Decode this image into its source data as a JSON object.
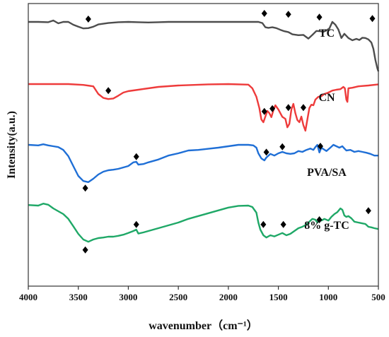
{
  "chart_data": {
    "type": "line",
    "xlabel": "wavenumber（cm⁻¹）",
    "ylabel": "Intensity(a.u.)",
    "xlim": [
      4000,
      500
    ],
    "x_ticks": [
      "4000",
      "3500",
      "3000",
      "2500",
      "2000",
      "1500",
      "1000",
      "500"
    ],
    "y_ticks": "none",
    "grid": false,
    "legend": "none",
    "marker": "diamond",
    "series": [
      {
        "name": "TC",
        "color": "#4d4d4d",
        "baseline": 0.935,
        "points": [
          [
            4000,
            0.935
          ],
          [
            3900,
            0.935
          ],
          [
            3800,
            0.934
          ],
          [
            3750,
            0.94
          ],
          [
            3700,
            0.93
          ],
          [
            3650,
            0.935
          ],
          [
            3600,
            0.935
          ],
          [
            3550,
            0.925
          ],
          [
            3500,
            0.918
          ],
          [
            3450,
            0.912
          ],
          [
            3400,
            0.913
          ],
          [
            3350,
            0.918
          ],
          [
            3300,
            0.926
          ],
          [
            3200,
            0.931
          ],
          [
            3100,
            0.934
          ],
          [
            3000,
            0.935
          ],
          [
            2900,
            0.934
          ],
          [
            2800,
            0.933
          ],
          [
            2700,
            0.934
          ],
          [
            2600,
            0.935
          ],
          [
            2400,
            0.935
          ],
          [
            2200,
            0.935
          ],
          [
            2000,
            0.935
          ],
          [
            1800,
            0.935
          ],
          [
            1700,
            0.935
          ],
          [
            1660,
            0.931
          ],
          [
            1630,
            0.916
          ],
          [
            1600,
            0.914
          ],
          [
            1560,
            0.916
          ],
          [
            1520,
            0.913
          ],
          [
            1480,
            0.907
          ],
          [
            1440,
            0.902
          ],
          [
            1400,
            0.899
          ],
          [
            1360,
            0.891
          ],
          [
            1300,
            0.888
          ],
          [
            1250,
            0.889
          ],
          [
            1200,
            0.876
          ],
          [
            1160,
            0.889
          ],
          [
            1120,
            0.903
          ],
          [
            1080,
            0.902
          ],
          [
            1050,
            0.9
          ],
          [
            1020,
            0.905
          ],
          [
            990,
            0.912
          ],
          [
            960,
            0.935
          ],
          [
            930,
            0.925
          ],
          [
            900,
            0.908
          ],
          [
            870,
            0.878
          ],
          [
            840,
            0.893
          ],
          [
            800,
            0.878
          ],
          [
            760,
            0.87
          ],
          [
            720,
            0.875
          ],
          [
            690,
            0.871
          ],
          [
            660,
            0.879
          ],
          [
            630,
            0.878
          ],
          [
            600,
            0.873
          ],
          [
            570,
            0.862
          ],
          [
            550,
            0.84
          ],
          [
            530,
            0.8
          ],
          [
            510,
            0.77
          ],
          [
            500,
            0.76
          ]
        ],
        "markers": [
          [
            3400,
            0.945
          ],
          [
            1640,
            0.965
          ],
          [
            1400,
            0.962
          ],
          [
            1090,
            0.952
          ],
          [
            560,
            0.947
          ]
        ]
      },
      {
        "name": "CN",
        "color": "#ee3b3b",
        "baseline": 0.715,
        "points": [
          [
            4000,
            0.715
          ],
          [
            3600,
            0.715
          ],
          [
            3450,
            0.712
          ],
          [
            3350,
            0.707
          ],
          [
            3300,
            0.68
          ],
          [
            3250,
            0.666
          ],
          [
            3200,
            0.662
          ],
          [
            3150,
            0.664
          ],
          [
            3100,
            0.674
          ],
          [
            3050,
            0.685
          ],
          [
            3000,
            0.69
          ],
          [
            2900,
            0.695
          ],
          [
            2700,
            0.705
          ],
          [
            2500,
            0.71
          ],
          [
            2200,
            0.714
          ],
          [
            2000,
            0.715
          ],
          [
            1800,
            0.713
          ],
          [
            1760,
            0.7
          ],
          [
            1720,
            0.67
          ],
          [
            1690,
            0.63
          ],
          [
            1670,
            0.59
          ],
          [
            1650,
            0.58
          ],
          [
            1630,
            0.6
          ],
          [
            1610,
            0.62
          ],
          [
            1590,
            0.612
          ],
          [
            1570,
            0.598
          ],
          [
            1550,
            0.622
          ],
          [
            1530,
            0.64
          ],
          [
            1500,
            0.625
          ],
          [
            1460,
            0.599
          ],
          [
            1430,
            0.592
          ],
          [
            1410,
            0.562
          ],
          [
            1390,
            0.574
          ],
          [
            1370,
            0.625
          ],
          [
            1350,
            0.645
          ],
          [
            1330,
            0.612
          ],
          [
            1310,
            0.588
          ],
          [
            1290,
            0.58
          ],
          [
            1270,
            0.6
          ],
          [
            1250,
            0.57
          ],
          [
            1230,
            0.55
          ],
          [
            1210,
            0.59
          ],
          [
            1190,
            0.63
          ],
          [
            1170,
            0.642
          ],
          [
            1150,
            0.64
          ],
          [
            1130,
            0.66
          ],
          [
            1100,
            0.67
          ],
          [
            1070,
            0.672
          ],
          [
            1040,
            0.68
          ],
          [
            1000,
            0.685
          ],
          [
            960,
            0.692
          ],
          [
            920,
            0.695
          ],
          [
            880,
            0.697
          ],
          [
            850,
            0.705
          ],
          [
            835,
            0.7
          ],
          [
            820,
            0.66
          ],
          [
            810,
            0.652
          ],
          [
            800,
            0.7
          ],
          [
            760,
            0.702
          ],
          [
            700,
            0.707
          ],
          [
            600,
            0.71
          ],
          [
            500,
            0.714
          ]
        ],
        "markers": [
          [
            3200,
            0.692
          ],
          [
            1640,
            0.618
          ],
          [
            1560,
            0.628
          ],
          [
            1400,
            0.632
          ],
          [
            1250,
            0.632
          ]
        ]
      },
      {
        "name": "PVA/SA",
        "color": "#1f6fd6",
        "baseline": 0.5,
        "points": [
          [
            4000,
            0.5
          ],
          [
            3900,
            0.498
          ],
          [
            3850,
            0.502
          ],
          [
            3800,
            0.498
          ],
          [
            3750,
            0.495
          ],
          [
            3700,
            0.492
          ],
          [
            3650,
            0.482
          ],
          [
            3600,
            0.46
          ],
          [
            3550,
            0.425
          ],
          [
            3500,
            0.39
          ],
          [
            3450,
            0.372
          ],
          [
            3400,
            0.368
          ],
          [
            3350,
            0.38
          ],
          [
            3300,
            0.395
          ],
          [
            3250,
            0.405
          ],
          [
            3200,
            0.41
          ],
          [
            3150,
            0.412
          ],
          [
            3100,
            0.415
          ],
          [
            3050,
            0.42
          ],
          [
            3000,
            0.425
          ],
          [
            2950,
            0.438
          ],
          [
            2920,
            0.44
          ],
          [
            2900,
            0.43
          ],
          [
            2850,
            0.432
          ],
          [
            2800,
            0.438
          ],
          [
            2700,
            0.448
          ],
          [
            2600,
            0.462
          ],
          [
            2500,
            0.47
          ],
          [
            2400,
            0.48
          ],
          [
            2300,
            0.482
          ],
          [
            2200,
            0.486
          ],
          [
            2100,
            0.49
          ],
          [
            2000,
            0.495
          ],
          [
            1900,
            0.5
          ],
          [
            1800,
            0.5
          ],
          [
            1750,
            0.498
          ],
          [
            1720,
            0.49
          ],
          [
            1700,
            0.47
          ],
          [
            1670,
            0.452
          ],
          [
            1640,
            0.445
          ],
          [
            1620,
            0.455
          ],
          [
            1580,
            0.468
          ],
          [
            1540,
            0.462
          ],
          [
            1500,
            0.47
          ],
          [
            1460,
            0.475
          ],
          [
            1420,
            0.47
          ],
          [
            1380,
            0.468
          ],
          [
            1340,
            0.47
          ],
          [
            1300,
            0.478
          ],
          [
            1260,
            0.475
          ],
          [
            1220,
            0.482
          ],
          [
            1180,
            0.487
          ],
          [
            1150,
            0.482
          ],
          [
            1130,
            0.492
          ],
          [
            1110,
            0.5
          ],
          [
            1090,
            0.473
          ],
          [
            1070,
            0.49
          ],
          [
            1050,
            0.485
          ],
          [
            1020,
            0.478
          ],
          [
            980,
            0.49
          ],
          [
            950,
            0.5
          ],
          [
            920,
            0.495
          ],
          [
            890,
            0.49
          ],
          [
            860,
            0.495
          ],
          [
            840,
            0.487
          ],
          [
            820,
            0.48
          ],
          [
            780,
            0.482
          ],
          [
            740,
            0.475
          ],
          [
            700,
            0.478
          ],
          [
            660,
            0.475
          ],
          [
            620,
            0.472
          ],
          [
            580,
            0.468
          ],
          [
            540,
            0.462
          ],
          [
            500,
            0.462
          ]
        ],
        "markers": [
          [
            3430,
            0.347
          ],
          [
            2920,
            0.458
          ],
          [
            1620,
            0.474
          ],
          [
            1460,
            0.493
          ],
          [
            1080,
            0.495
          ]
        ]
      },
      {
        "name": "8% g-TC",
        "color": "#1fa867",
        "baseline": 0.287,
        "points": [
          [
            4000,
            0.287
          ],
          [
            3900,
            0.285
          ],
          [
            3850,
            0.292
          ],
          [
            3800,
            0.288
          ],
          [
            3750,
            0.275
          ],
          [
            3700,
            0.265
          ],
          [
            3650,
            0.255
          ],
          [
            3600,
            0.238
          ],
          [
            3550,
            0.212
          ],
          [
            3500,
            0.185
          ],
          [
            3450,
            0.165
          ],
          [
            3400,
            0.157
          ],
          [
            3350,
            0.165
          ],
          [
            3300,
            0.17
          ],
          [
            3250,
            0.172
          ],
          [
            3200,
            0.175
          ],
          [
            3150,
            0.175
          ],
          [
            3100,
            0.178
          ],
          [
            3050,
            0.182
          ],
          [
            3000,
            0.188
          ],
          [
            2950,
            0.195
          ],
          [
            2920,
            0.2
          ],
          [
            2900,
            0.186
          ],
          [
            2850,
            0.19
          ],
          [
            2800,
            0.195
          ],
          [
            2700,
            0.205
          ],
          [
            2600,
            0.215
          ],
          [
            2500,
            0.225
          ],
          [
            2400,
            0.238
          ],
          [
            2300,
            0.248
          ],
          [
            2200,
            0.258
          ],
          [
            2100,
            0.268
          ],
          [
            2000,
            0.278
          ],
          [
            1900,
            0.284
          ],
          [
            1800,
            0.285
          ],
          [
            1760,
            0.28
          ],
          [
            1720,
            0.26
          ],
          [
            1700,
            0.225
          ],
          [
            1680,
            0.2
          ],
          [
            1650,
            0.18
          ],
          [
            1620,
            0.172
          ],
          [
            1580,
            0.18
          ],
          [
            1540,
            0.176
          ],
          [
            1500,
            0.182
          ],
          [
            1460,
            0.188
          ],
          [
            1420,
            0.18
          ],
          [
            1380,
            0.185
          ],
          [
            1340,
            0.195
          ],
          [
            1300,
            0.205
          ],
          [
            1260,
            0.21
          ],
          [
            1220,
            0.218
          ],
          [
            1190,
            0.228
          ],
          [
            1160,
            0.238
          ],
          [
            1130,
            0.235
          ],
          [
            1110,
            0.225
          ],
          [
            1090,
            0.235
          ],
          [
            1070,
            0.232
          ],
          [
            1040,
            0.238
          ],
          [
            1000,
            0.232
          ],
          [
            970,
            0.245
          ],
          [
            940,
            0.255
          ],
          [
            910,
            0.262
          ],
          [
            880,
            0.275
          ],
          [
            860,
            0.27
          ],
          [
            840,
            0.25
          ],
          [
            820,
            0.245
          ],
          [
            800,
            0.248
          ],
          [
            770,
            0.24
          ],
          [
            740,
            0.228
          ],
          [
            700,
            0.225
          ],
          [
            660,
            0.222
          ],
          [
            630,
            0.22
          ],
          [
            600,
            0.21
          ],
          [
            570,
            0.208
          ],
          [
            540,
            0.205
          ],
          [
            500,
            0.202
          ]
        ],
        "markers": [
          [
            3430,
            0.128
          ],
          [
            2920,
            0.218
          ],
          [
            1650,
            0.218
          ],
          [
            1450,
            0.218
          ],
          [
            1090,
            0.235
          ],
          [
            600,
            0.267
          ]
        ]
      }
    ]
  }
}
